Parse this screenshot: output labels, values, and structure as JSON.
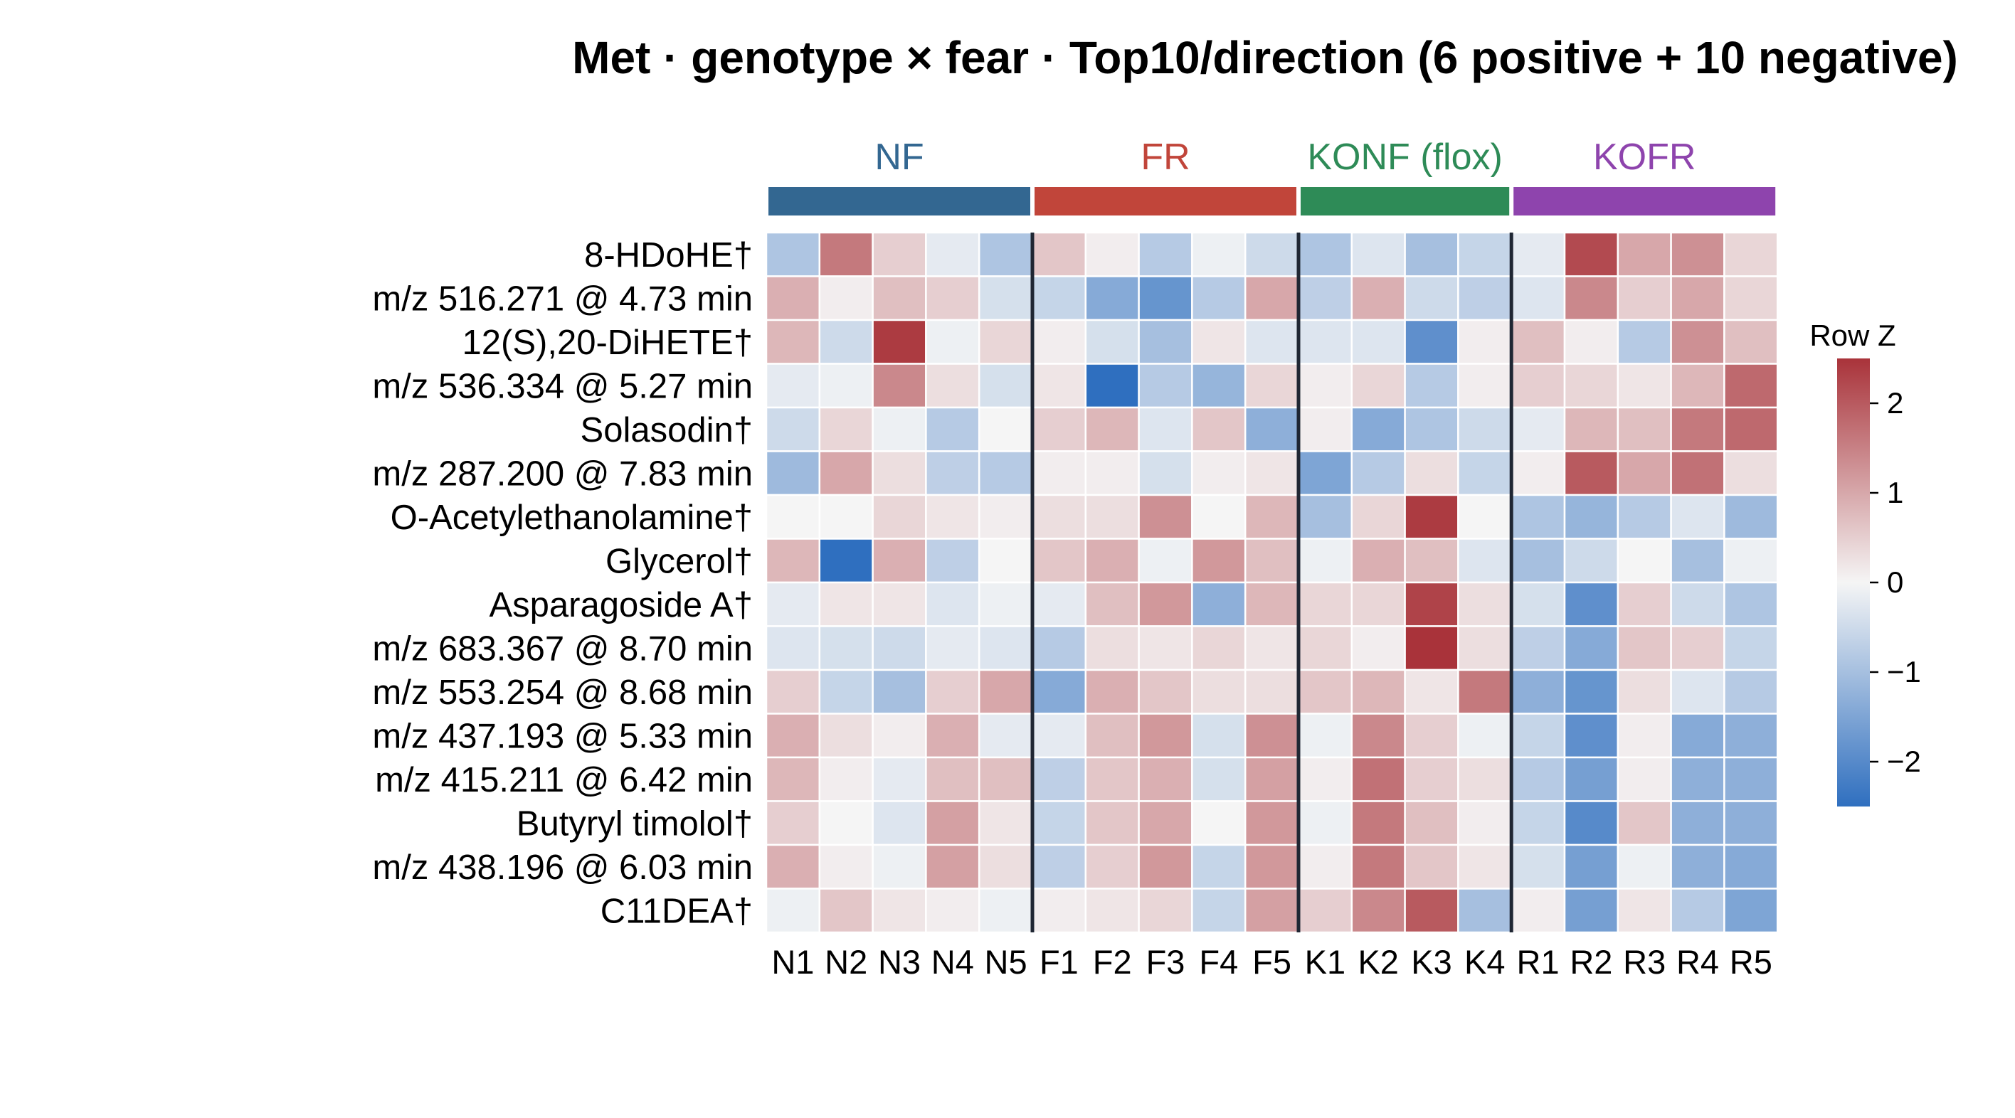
{
  "chart_data": {
    "type": "heatmap",
    "title": "Met · genotype × fear · Top10/direction (6 positive + 10 negative)",
    "groups": [
      {
        "name": "NF",
        "color": "#336791",
        "columns": [
          "N1",
          "N2",
          "N3",
          "N4",
          "N5"
        ]
      },
      {
        "name": "FR",
        "color": "#c1453a",
        "columns": [
          "F1",
          "F2",
          "F3",
          "F4",
          "F5"
        ]
      },
      {
        "name": "KONF (flox)",
        "color": "#2e8b57",
        "columns": [
          "K1",
          "K2",
          "K3",
          "K4"
        ]
      },
      {
        "name": "KOFR",
        "color": "#8e44ad",
        "columns": [
          "R1",
          "R2",
          "R3",
          "R4",
          "R5"
        ]
      }
    ],
    "columns": [
      "N1",
      "N2",
      "N3",
      "N4",
      "N5",
      "F1",
      "F2",
      "F3",
      "F4",
      "F5",
      "K1",
      "K2",
      "K3",
      "K4",
      "R1",
      "R2",
      "R3",
      "R4",
      "R5"
    ],
    "rows": [
      "8-HDoHE†",
      "m/z 516.271 @ 4.73 min",
      "12(S),20-DiHETE†",
      "m/z 536.334 @ 5.27 min",
      "Solasodin†",
      "m/z 287.200 @ 7.83 min",
      "O-Acetylethanolamine†",
      "Glycerol†",
      "Asparagoside A†",
      "m/z 683.367 @ 8.70 min",
      "m/z 553.254 @ 8.68 min",
      "m/z 437.193 @ 5.33 min",
      "m/z 415.211 @ 6.42 min",
      "Butyryl timolol†",
      "m/z 438.196 @ 6.03 min",
      "C11DEA†"
    ],
    "values": [
      [
        -0.9,
        1.6,
        0.5,
        -0.2,
        -0.9,
        0.6,
        0.1,
        -0.8,
        -0.1,
        -0.5,
        -0.9,
        -0.3,
        -1.0,
        -0.6,
        -0.2,
        2.2,
        1.0,
        1.3,
        0.4
      ],
      [
        0.9,
        0.1,
        0.7,
        0.5,
        -0.4,
        -0.6,
        -1.4,
        -1.8,
        -0.8,
        1.0,
        -0.7,
        0.9,
        -0.5,
        -0.7,
        -0.3,
        1.4,
        0.5,
        1.0,
        0.4
      ],
      [
        0.8,
        -0.5,
        2.4,
        -0.1,
        0.4,
        0.1,
        -0.4,
        -1.0,
        0.2,
        -0.3,
        -0.3,
        -0.3,
        -1.9,
        0.1,
        0.7,
        0.1,
        -0.8,
        1.3,
        0.7
      ],
      [
        -0.2,
        -0.1,
        1.4,
        0.3,
        -0.4,
        0.2,
        -2.5,
        -0.8,
        -1.2,
        0.4,
        0.1,
        0.4,
        -0.8,
        0.1,
        0.5,
        0.4,
        0.2,
        0.8,
        1.8
      ],
      [
        -0.5,
        0.4,
        -0.1,
        -0.8,
        0.0,
        0.5,
        0.8,
        -0.3,
        0.6,
        -1.3,
        0.1,
        -1.4,
        -0.9,
        -0.5,
        -0.2,
        0.8,
        0.7,
        1.6,
        1.8
      ],
      [
        -1.1,
        1.0,
        0.3,
        -0.7,
        -0.8,
        0.1,
        0.1,
        -0.4,
        0.1,
        0.2,
        -1.5,
        -0.8,
        0.3,
        -0.6,
        0.1,
        2.0,
        1.0,
        1.7,
        0.3
      ],
      [
        0.0,
        0.0,
        0.4,
        0.2,
        0.1,
        0.3,
        0.3,
        1.3,
        0.0,
        0.8,
        -1.0,
        0.4,
        2.4,
        0.0,
        -0.9,
        -1.2,
        -0.8,
        -0.3,
        -1.1
      ],
      [
        0.8,
        -2.5,
        0.9,
        -0.7,
        0.0,
        0.6,
        0.9,
        -0.1,
        1.2,
        0.7,
        -0.1,
        0.9,
        0.7,
        -0.3,
        -1.0,
        -0.5,
        0.0,
        -1.0,
        -0.1
      ],
      [
        -0.2,
        0.2,
        0.2,
        -0.3,
        -0.1,
        -0.2,
        0.7,
        1.2,
        -1.3,
        0.8,
        0.4,
        0.4,
        2.3,
        0.3,
        -0.4,
        -1.9,
        0.5,
        -0.5,
        -0.9
      ],
      [
        -0.3,
        -0.4,
        -0.5,
        -0.2,
        -0.3,
        -0.8,
        0.3,
        0.2,
        0.4,
        0.2,
        0.4,
        0.1,
        2.5,
        0.3,
        -0.7,
        -1.4,
        0.6,
        0.5,
        -0.6
      ],
      [
        0.5,
        -0.6,
        -1.0,
        0.5,
        1.0,
        -1.4,
        0.9,
        0.6,
        0.3,
        0.3,
        0.6,
        0.8,
        0.2,
        1.6,
        -1.3,
        -1.8,
        0.3,
        -0.3,
        -0.8
      ],
      [
        0.9,
        0.3,
        0.1,
        0.9,
        -0.2,
        -0.2,
        0.7,
        1.2,
        -0.4,
        1.3,
        -0.1,
        1.4,
        0.5,
        -0.1,
        -0.6,
        -1.9,
        0.1,
        -1.4,
        -1.3
      ],
      [
        0.8,
        0.1,
        -0.2,
        0.7,
        0.7,
        -0.7,
        0.6,
        0.9,
        -0.4,
        1.1,
        0.1,
        1.7,
        0.5,
        0.3,
        -0.8,
        -1.6,
        0.1,
        -1.3,
        -1.3
      ],
      [
        0.5,
        0.0,
        -0.3,
        1.1,
        0.2,
        -0.6,
        0.6,
        1.0,
        0.0,
        1.2,
        -0.1,
        1.6,
        0.7,
        0.1,
        -0.6,
        -2.0,
        0.6,
        -1.3,
        -1.3
      ],
      [
        0.9,
        0.1,
        -0.1,
        1.1,
        0.3,
        -0.7,
        0.5,
        1.2,
        -0.6,
        1.2,
        0.1,
        1.6,
        0.6,
        0.2,
        -0.4,
        -1.6,
        -0.1,
        -1.3,
        -1.4
      ],
      [
        -0.1,
        0.6,
        0.2,
        0.1,
        -0.1,
        0.1,
        0.2,
        0.4,
        -0.6,
        1.1,
        0.5,
        1.4,
        2.0,
        -1.0,
        0.1,
        -1.6,
        0.2,
        -0.8,
        -1.5
      ]
    ],
    "colorbar": {
      "label": "Row Z",
      "range": [
        -2.5,
        2.5
      ],
      "ticks": [
        2,
        1,
        0,
        -1,
        -2
      ],
      "tick_labels": [
        "2",
        "1",
        "0",
        "−1",
        "−2"
      ],
      "colors": {
        "low": "#2f6fbf",
        "mid": "#f5f5f5",
        "high": "#a9333a"
      }
    },
    "grid": false
  }
}
